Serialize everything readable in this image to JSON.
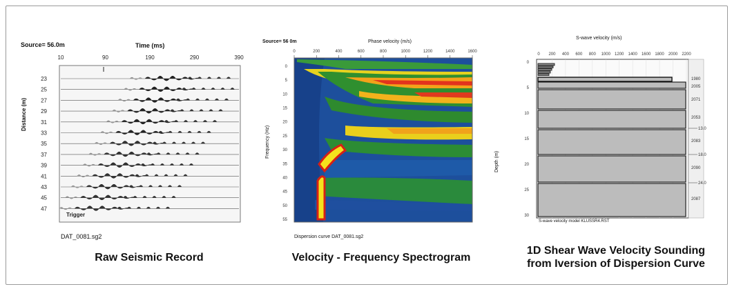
{
  "panels": {
    "raw": {
      "source_label": "Source= 56.0m",
      "time_label": "Time (ms)",
      "time_ticks": [
        "10",
        "90",
        "190",
        "290",
        "390"
      ],
      "distance_label": "Distance (m)",
      "distance_ticks": [
        "23",
        "25",
        "27",
        "29",
        "31",
        "33",
        "35",
        "37",
        "39",
        "41",
        "43",
        "45",
        "47"
      ],
      "trigger_label": "Trigger",
      "file_label": "DAT_0081.sg2",
      "caption": "Raw Seismic Record"
    },
    "spectrogram": {
      "source_label": "Source= 56 0m",
      "velocity_label": "Phase velocity (m/s)",
      "velocity_ticks": [
        "0",
        "200",
        "400",
        "600",
        "800",
        "1000",
        "1200",
        "1400",
        "1600"
      ],
      "frequency_label": "Frequency (Hz)",
      "frequency_ticks": [
        "0",
        "5",
        "10",
        "15",
        "20",
        "25",
        "30",
        "35",
        "40",
        "45",
        "50",
        "55"
      ],
      "footer_label": "Dispersion curve   DAT_0081.sg2",
      "caption": "Velocity - Frequency Spectrogram"
    },
    "sounding": {
      "velocity_label": "S-wave velocity (m/s)",
      "velocity_ticks": [
        "0",
        "200",
        "400",
        "600",
        "800",
        "1000",
        "1200",
        "1400",
        "1600",
        "1800",
        "2000",
        "2200"
      ],
      "depth_label": "Depth (m)",
      "depth_ticks": [
        "0",
        "5",
        "10",
        "15",
        "20",
        "25",
        "30"
      ],
      "layer_velocities": [
        "1980",
        "2005",
        "2071",
        "2053",
        "2083",
        "2090",
        "2087"
      ],
      "boundary_labels": [
        "13.0",
        "18.0",
        "24.0"
      ],
      "footer_label": "S-wave velocity model     KLUSSR4.RST",
      "caption_line1": "1D Shear Wave Velocity Sounding",
      "caption_line2": "from Iversion of Dispersion Curve"
    }
  }
}
